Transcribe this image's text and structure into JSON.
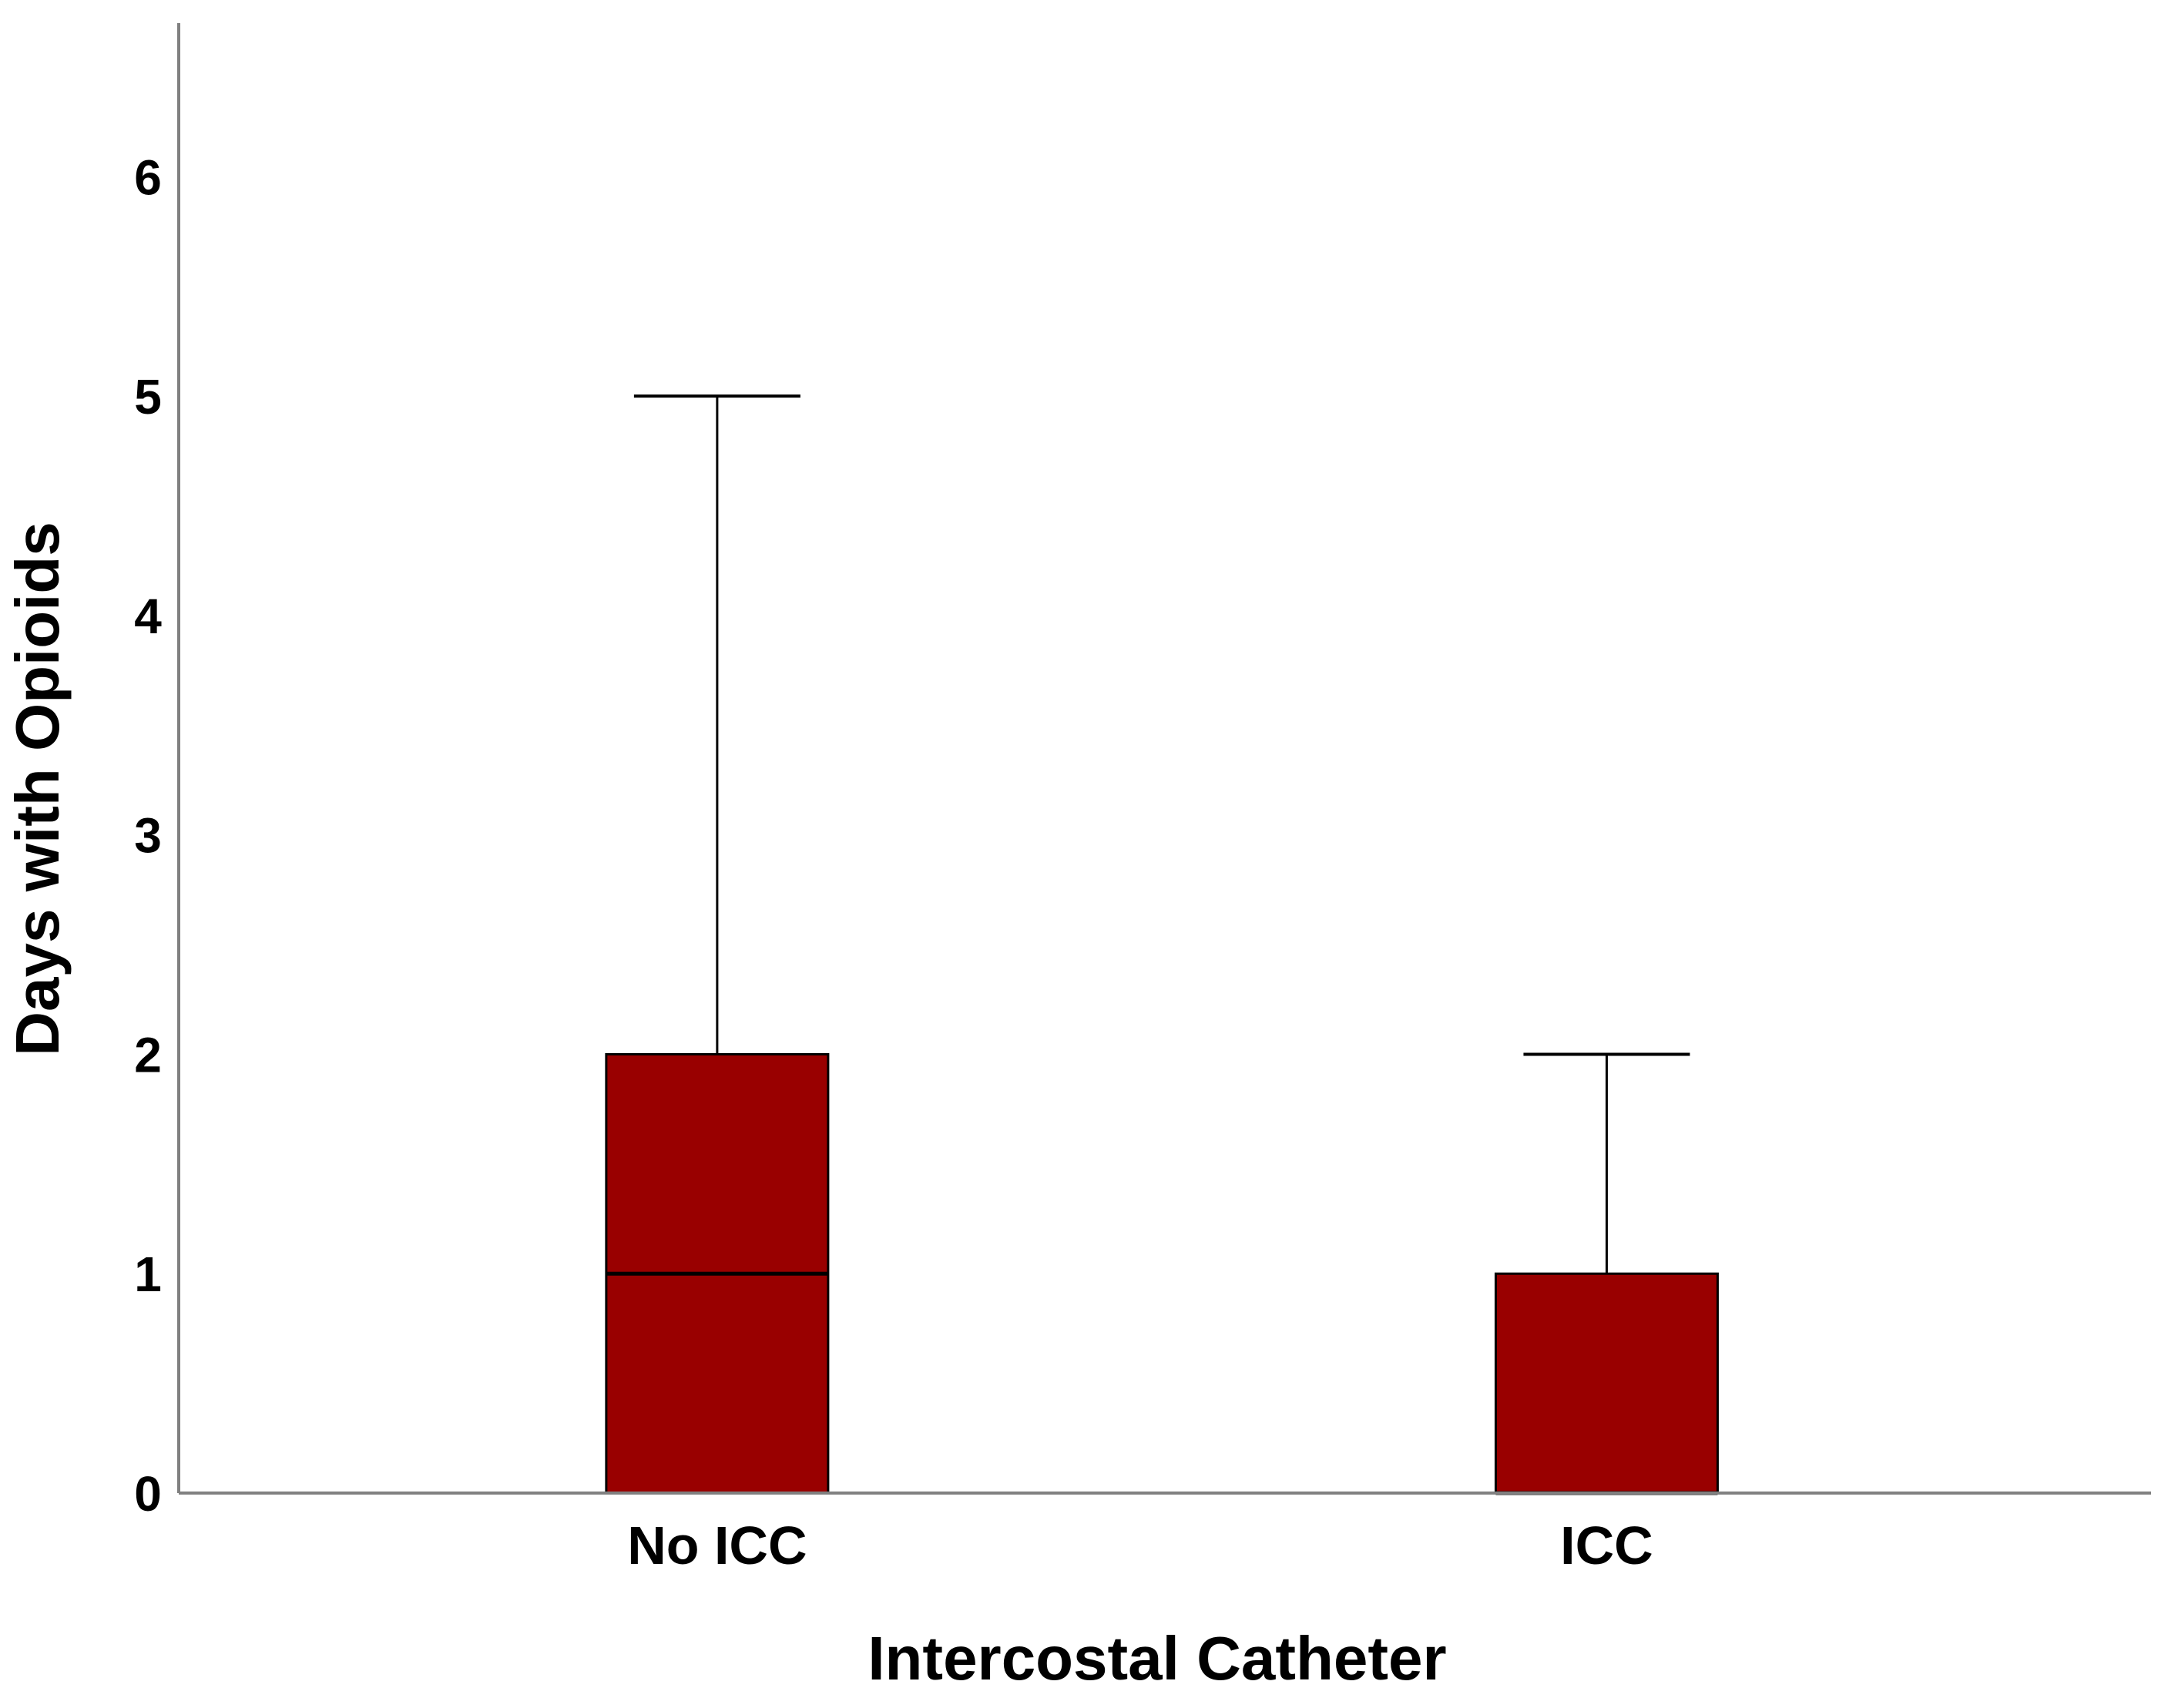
{
  "chart_data": {
    "type": "boxplot",
    "title": "",
    "xlabel": "Intercostal Catheter",
    "ylabel": "Days with Opioids",
    "ylim": [
      0,
      6.7
    ],
    "yticks": [
      0,
      1,
      2,
      3,
      4,
      5,
      6
    ],
    "categories": [
      "No ICC",
      "ICC"
    ],
    "boxes": [
      {
        "category": "No ICC",
        "whisker_low": 0,
        "q1": 0,
        "median": 1,
        "q3": 2,
        "whisker_high": 5
      },
      {
        "category": "ICC",
        "whisker_low": 0,
        "q1": 0,
        "median": 0,
        "q3": 1,
        "whisker_high": 2
      }
    ],
    "grid": false,
    "legend": "none",
    "colors": {
      "box_fill": "#990000",
      "box_stroke": "#000000",
      "axis": "#808080"
    }
  }
}
